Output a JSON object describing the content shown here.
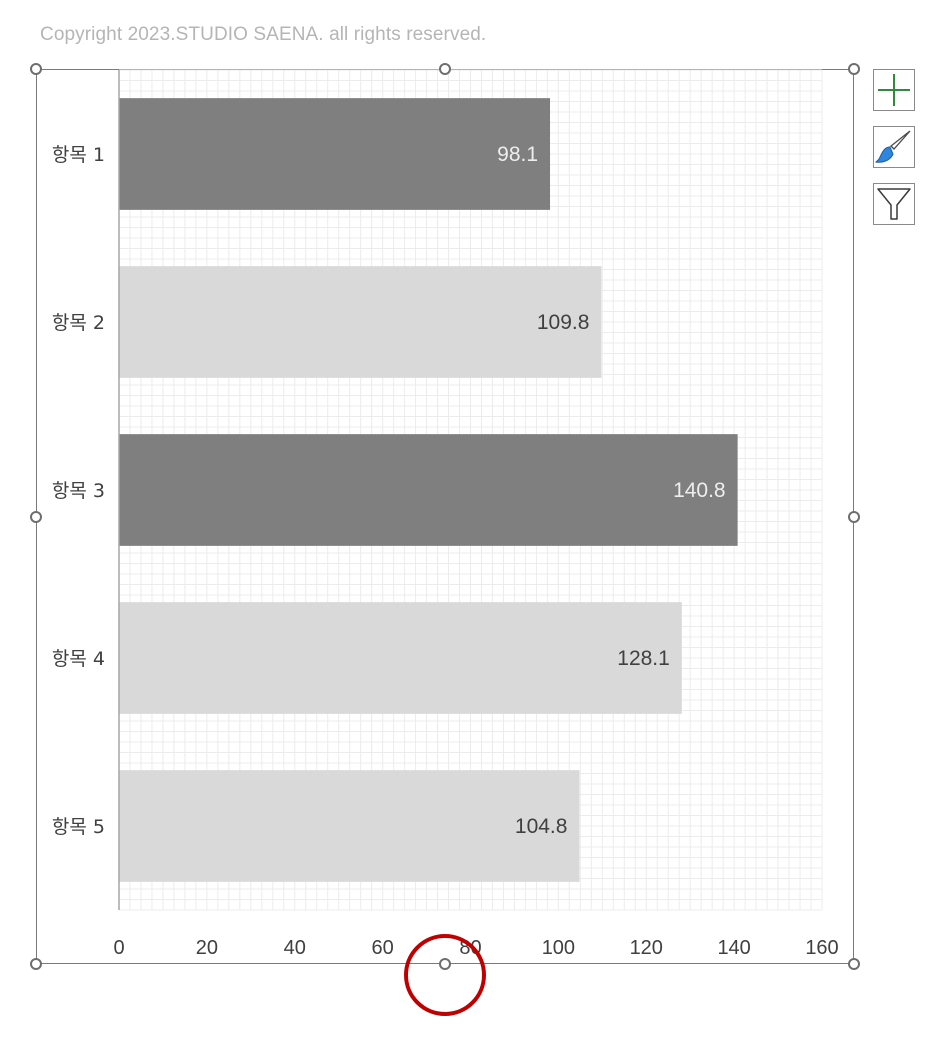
{
  "copyright": "Copyright 2023.STUDIO SAENA. all rights reserved.",
  "chart_data": {
    "type": "bar",
    "orientation": "horizontal",
    "categories": [
      "항목 1",
      "항목 2",
      "항목 3",
      "항목 4",
      "항목 5"
    ],
    "values": [
      98.1,
      109.8,
      140.8,
      128.1,
      104.8
    ],
    "data_labels": [
      "98.1",
      "109.8",
      "140.8",
      "128.1",
      "104.8"
    ],
    "bar_colors": [
      "#7f7f7f",
      "#d9d9d9",
      "#7f7f7f",
      "#d9d9d9",
      "#d9d9d9"
    ],
    "label_colors": [
      "#eeeeee",
      "#404040",
      "#eeeeee",
      "#404040",
      "#404040"
    ],
    "xlim": [
      0,
      160
    ],
    "xticks": [
      0,
      20,
      40,
      60,
      80,
      100,
      120,
      140,
      160
    ],
    "grid": true,
    "legend": "none"
  },
  "side_buttons": {
    "add_icon": "plus-icon",
    "style_icon": "brush-icon",
    "filter_icon": "filter-icon"
  },
  "colors": {
    "axis_text": "#404040",
    "grid": "#ececec",
    "focus_ring": "#c00000",
    "plus_green": "#2e8b3a",
    "brush_blue": "#2e86de"
  }
}
